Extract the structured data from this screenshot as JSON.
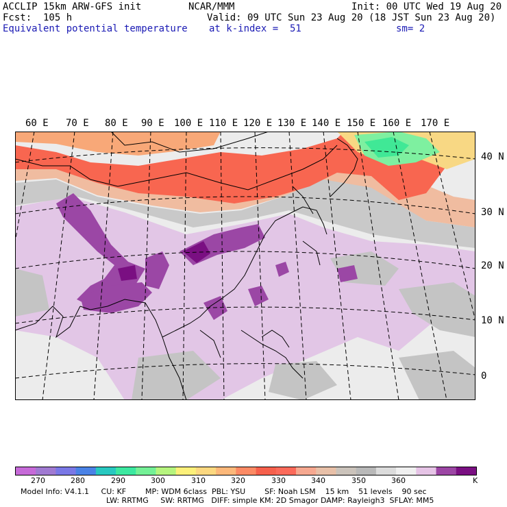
{
  "header": {
    "model": "ACCLIP 15km ARW-GFS init",
    "org": "NCAR/MMM",
    "init": "Init: 00 UTC Wed 19 Aug 20",
    "fcst": "Fcst:  105 h",
    "valid": "Valid: 09 UTC Sun 23 Aug 20 (18 JST Sun 23 Aug 20)",
    "field": "Equivalent potential temperature",
    "level": "at k-index =  51",
    "smooth": "sm= 2"
  },
  "map": {
    "lon_labels": [
      "60 E",
      "70 E",
      "80 E",
      "90 E",
      "100 E",
      "110 E",
      "120 E",
      "130 E",
      "140 E",
      "150 E",
      "160 E",
      "170 E"
    ],
    "lat_labels": [
      "40 N",
      "30 N",
      "20 N",
      "10 N",
      "0"
    ]
  },
  "colorbar": {
    "colors": [
      "#c66ad8",
      "#a07ad2",
      "#7a78e6",
      "#4a82e6",
      "#28c8c0",
      "#3ce8a0",
      "#74f096",
      "#b6f47e",
      "#fcf07a",
      "#fcd880",
      "#fcb87a",
      "#fc8a64",
      "#f6604c",
      "#fc6a5a",
      "#f6a890",
      "#e8c0a8",
      "#cbc3bb",
      "#b9b9b9",
      "#dcdcdc",
      "#f0f0f0",
      "#e6c4e6",
      "#9c46a4",
      "#7a0f82"
    ],
    "labels": [
      "270",
      "280",
      "290",
      "300",
      "310",
      "320",
      "330",
      "340",
      "350",
      "360"
    ],
    "unit": "K"
  },
  "footer": {
    "line1": "Model Info: V4.1.1     CU: KF        MP: WDM 6class  PBL: YSU        SF: Noah LSM    15 km    51 levels    90 sec",
    "line2": "LW: RRTMG     SW: RRTMG   DIFF: simple KM: 2D Smagor DAMP: Rayleigh3  SFLAY: MM5"
  }
}
